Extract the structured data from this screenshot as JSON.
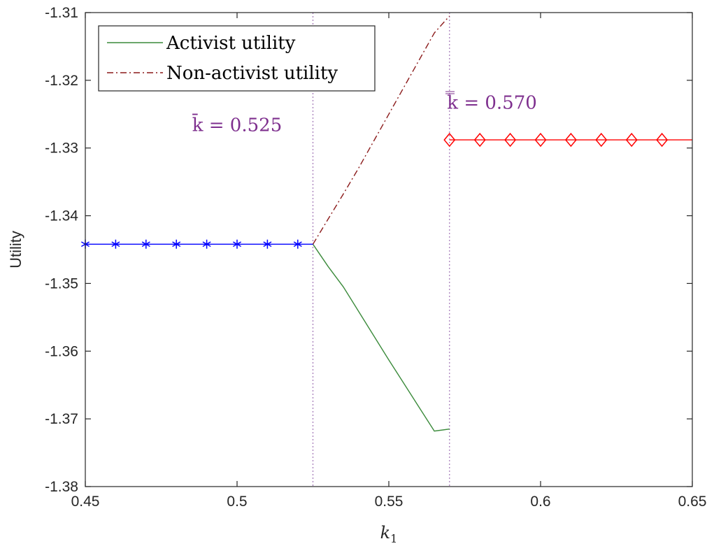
{
  "chart_data": {
    "type": "line",
    "title": "",
    "xlabel": "k",
    "xlabel_sub": "1",
    "ylabel": "Utility",
    "xlim": [
      0.45,
      0.65
    ],
    "ylim": [
      -1.38,
      -1.31
    ],
    "x_ticks": [
      0.45,
      0.5,
      0.55,
      0.6,
      0.65
    ],
    "x_tick_labels": [
      "0.45",
      "0.5",
      "0.55",
      "0.6",
      "0.65"
    ],
    "y_ticks": [
      -1.38,
      -1.37,
      -1.36,
      -1.35,
      -1.34,
      -1.33,
      -1.32,
      -1.31
    ],
    "y_tick_labels": [
      "-1.38",
      "-1.37",
      "-1.36",
      "-1.35",
      "-1.34",
      "-1.33",
      "-1.32",
      "-1.31"
    ],
    "grid": false,
    "legend_position": "top-left",
    "vlines": [
      0.525,
      0.57
    ],
    "annotations": [
      {
        "text": "k̄ = 0.525",
        "x": 0.5,
        "y": -1.3275,
        "color": "#7e2f8e"
      },
      {
        "text": "k̿ = 0.570",
        "x": 0.584,
        "y": -1.3242,
        "color": "#7e2f8e"
      }
    ],
    "series": [
      {
        "name": "Activist utility",
        "legend": true,
        "color": "#3a8a3a",
        "style": "solid",
        "x": [
          0.525,
          0.53,
          0.535,
          0.54,
          0.545,
          0.55,
          0.555,
          0.56,
          0.565,
          0.57
        ],
        "y": [
          -1.3442,
          -1.3475,
          -1.3505,
          -1.3541,
          -1.3577,
          -1.3613,
          -1.3648,
          -1.3683,
          -1.3718,
          -1.3715
        ]
      },
      {
        "name": "Non-activist utility",
        "legend": true,
        "color": "#8b1a1a",
        "style": "dashdot",
        "x": [
          0.525,
          0.53,
          0.535,
          0.54,
          0.545,
          0.55,
          0.555,
          0.56,
          0.565,
          0.57
        ],
        "y": [
          -1.3442,
          -1.3405,
          -1.3368,
          -1.333,
          -1.329,
          -1.325,
          -1.321,
          -1.317,
          -1.313,
          -1.3105
        ]
      },
      {
        "legend": false,
        "color": "#0000ff",
        "style": "solid",
        "marker": "asterisk",
        "line_x": [
          0.45,
          0.525
        ],
        "line_y": [
          -1.3442,
          -1.3442
        ],
        "x": [
          0.45,
          0.46,
          0.47,
          0.48,
          0.49,
          0.5,
          0.51,
          0.52
        ],
        "y": [
          -1.3442,
          -1.3442,
          -1.3442,
          -1.3442,
          -1.3442,
          -1.3442,
          -1.3442,
          -1.3442
        ]
      },
      {
        "legend": false,
        "color": "#ff0000",
        "style": "solid",
        "marker": "diamond",
        "line_x": [
          0.57,
          0.65
        ],
        "line_y": [
          -1.3288,
          -1.3288
        ],
        "x": [
          0.57,
          0.58,
          0.59,
          0.6,
          0.61,
          0.62,
          0.63,
          0.64
        ],
        "y": [
          -1.3288,
          -1.3288,
          -1.3288,
          -1.3288,
          -1.3288,
          -1.3288,
          -1.3288,
          -1.3288
        ]
      }
    ]
  }
}
